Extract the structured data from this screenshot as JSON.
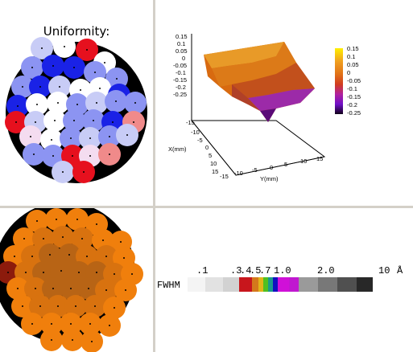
{
  "uniformity_panel": {
    "title": "Uniformity:",
    "dot_colors": {
      "dark_blue": "#1a22e6",
      "light_blue": "#8c94f2",
      "pale_blue": "#c8ccf6",
      "white": "#ffffff",
      "pale_pink": "#f4dcf0",
      "red": "#e6101e",
      "light_red": "#f08a8a"
    }
  },
  "surface_plot": {
    "z_ticks": [
      "0.15",
      "0.1",
      "0.05",
      "0",
      "-0.05",
      "-0.1",
      "-0.15",
      "-0.2",
      "-0.25"
    ],
    "x_axis_label": "X(mm)",
    "y_axis_label": "Y(mm)",
    "x_ticks": [
      "-15",
      "-10",
      "-5",
      "0",
      "5",
      "10",
      "15"
    ],
    "y_ticks": [
      "-15",
      "-10",
      "-5",
      "0",
      "5",
      "10",
      "15"
    ],
    "colorbar_ticks": [
      "0.15",
      "0.1",
      "0.05",
      "0",
      "-0.05",
      "-0.1",
      "-0.15",
      "-0.2",
      "-0.25"
    ]
  },
  "fwhm_panel": {
    "dot_colors": {
      "orange": "#f07f0c",
      "mid_orange": "#d8720f",
      "brown": "#b86415",
      "dark_red": "#8c1b0c"
    }
  },
  "fwhm_scale": {
    "label": "FWHM",
    "ticks": [
      ".1",
      ".3",
      ".4",
      ".5",
      ".7",
      "1.0",
      "2.0",
      "10"
    ],
    "unit": "Å",
    "segments": [
      {
        "color": "#f4f4f4"
      },
      {
        "color": "#e2e2e2"
      },
      {
        "color": "#d2d2d2"
      },
      {
        "color": "#c8161c"
      },
      {
        "color": "#d4781c"
      },
      {
        "color": "#e2b41a"
      },
      {
        "color": "#50c020"
      },
      {
        "color": "#1a9a8c"
      },
      {
        "color": "#1010c0"
      },
      {
        "color": "#d010d8"
      },
      {
        "color": "#c018d0"
      },
      {
        "color": "#9a9a9a"
      },
      {
        "color": "#787878"
      },
      {
        "color": "#505050"
      },
      {
        "color": "#282828"
      }
    ]
  }
}
